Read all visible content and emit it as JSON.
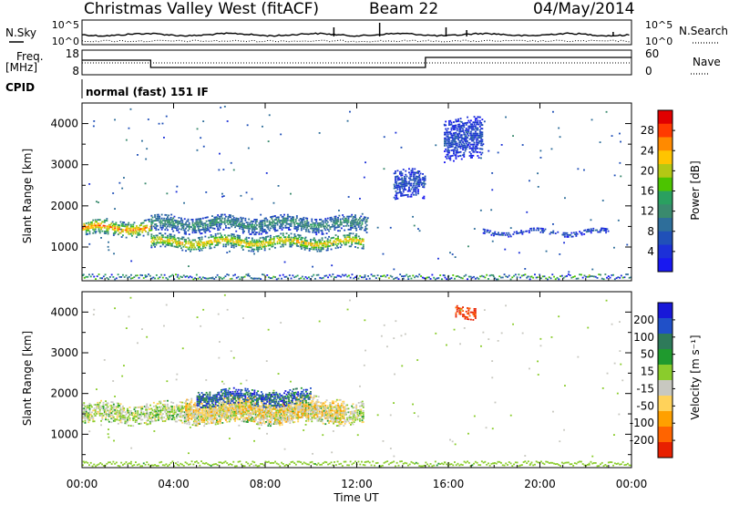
{
  "header": {
    "station": "Christmas Valley West (fitACF)",
    "beam": "Beam 22",
    "date": "04/May/2014"
  },
  "panels": {
    "nsky": {
      "left_label": "N.Sky",
      "right_label": "N.Search",
      "left_ticks": [
        "10^5",
        "10^0"
      ],
      "right_ticks": [
        "10^5",
        "10^0"
      ]
    },
    "freq": {
      "left_label_1": "Freq.",
      "left_label_2": "[MHz]",
      "right_label": "Nave",
      "left_ticks": [
        "18",
        "8"
      ],
      "right_ticks": [
        "60",
        "0"
      ]
    },
    "cpid": {
      "label": "CPID",
      "text": "normal (fast) 151 IF"
    }
  },
  "x_axis": {
    "title": "Time UT",
    "ticks": [
      "00:00",
      "04:00",
      "08:00",
      "12:00",
      "16:00",
      "20:00",
      "00:00"
    ]
  },
  "y_axis": {
    "title": "Slant Range [km]",
    "ticks": [
      "1000",
      "2000",
      "3000",
      "4000"
    ]
  },
  "colorbars": {
    "power": {
      "title": "Power [dB]",
      "ticks": [
        "28",
        "24",
        "20",
        "16",
        "12",
        "8",
        "4"
      ],
      "colors": [
        "#e00000",
        "#ff3a00",
        "#ff8a00",
        "#ffc400",
        "#b4c814",
        "#4cc400",
        "#2aa060",
        "#3a8a6e",
        "#2e6e9a",
        "#2050b8",
        "#1c30d8",
        "#1818f0"
      ]
    },
    "velocity": {
      "title": "Velocity [m s⁻¹]",
      "ticks": [
        "200",
        "100",
        "50",
        "15",
        "-15",
        "-50",
        "-100",
        "-200"
      ],
      "colors": [
        "#1818d8",
        "#2050c8",
        "#2e7a5a",
        "#1f9a2e",
        "#8acc2c",
        "#c8c8c0",
        "#ffd25a",
        "#ffa000",
        "#ff6400",
        "#e82000"
      ]
    }
  },
  "chart_data": [
    {
      "type": "heatmap",
      "title": "Power [dB]",
      "xlabel": "Time UT",
      "ylabel": "Slant Range [km]",
      "xlim": [
        0,
        24
      ],
      "ylim": [
        180,
        4500
      ],
      "color_range": [
        0,
        30
      ],
      "features": [
        {
          "name": "near-range band",
          "t_start": 0.0,
          "t_end": 3.0,
          "range_center": 1450,
          "half_width": 180,
          "power": 25
        },
        {
          "name": "near-range band",
          "t_start": 3.0,
          "t_end": 12.3,
          "range_center": 1100,
          "half_width": 160,
          "power": 23
        },
        {
          "name": "mid-range band",
          "t_start": 3.0,
          "t_end": 12.5,
          "range_center": 1550,
          "half_width": 200,
          "power": 12
        },
        {
          "name": "isolated patch",
          "t_start": 13.6,
          "t_end": 15.0,
          "range_center": 2500,
          "half_width": 350,
          "power": 6
        },
        {
          "name": "late band",
          "t_start": 17.5,
          "t_end": 23.0,
          "range_center": 1350,
          "half_width": 60,
          "power": 6
        },
        {
          "name": "high-range scatter",
          "t_start": 15.8,
          "t_end": 17.5,
          "range_center": 3600,
          "half_width": 500,
          "power": 5
        }
      ]
    },
    {
      "type": "heatmap",
      "title": "Velocity [m s⁻¹]",
      "xlabel": "Time UT",
      "ylabel": "Slant Range [km]",
      "xlim": [
        0,
        24
      ],
      "ylim": [
        180,
        4500
      ],
      "color_range": [
        -200,
        200
      ],
      "features": [
        {
          "name": "ground scatter band",
          "t_start": 0.0,
          "t_end": 12.3,
          "range_center": 1500,
          "half_width": 250,
          "velocity": 0
        },
        {
          "name": "mixed flow region",
          "t_start": 4.5,
          "t_end": 11.5,
          "range_center": 1600,
          "half_width": 300,
          "velocity": -60
        },
        {
          "name": "positive flow region",
          "t_start": 5.0,
          "t_end": 10.0,
          "range_center": 1900,
          "half_width": 200,
          "velocity": 150
        },
        {
          "name": "high-range red patch",
          "t_start": 16.3,
          "t_end": 17.2,
          "range_center": 4000,
          "half_width": 150,
          "velocity": -220
        }
      ]
    }
  ]
}
